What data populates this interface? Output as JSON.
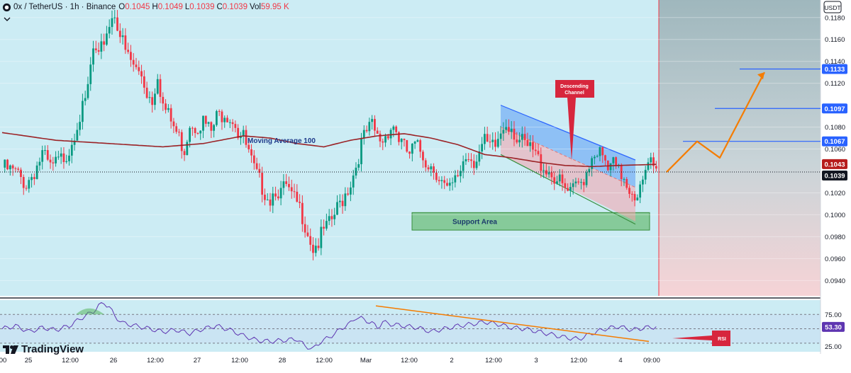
{
  "header": {
    "symbol": "0x / TetherUS · 1h · Binance",
    "ohlc": [
      {
        "label": "O",
        "value": "0.1045"
      },
      {
        "label": "H",
        "value": "0.1049"
      },
      {
        "label": "L",
        "value": "0.1039"
      },
      {
        "label": "C",
        "value": "0.1039"
      }
    ],
    "vol_label": "Vol",
    "vol_value": "59.95 K"
  },
  "currency": "USDT",
  "brand": "TradingView",
  "colors": {
    "up": "#089981",
    "down": "#f23645",
    "ma": "#9b2226",
    "price_bg": "#ccecf4",
    "forecast_bg": "#cfd9dd",
    "support": "#4caf50",
    "channel": "#5b9cf6",
    "arrow": "#f57c00"
  },
  "annotations": {
    "ma_label": "Moving Average 100",
    "support_label": "Support Area",
    "channel_callout": "Descending\nChannel",
    "rsi_callout": "RSI"
  },
  "chart_data": [
    {
      "type": "candlestick",
      "title": "0x / TetherUS · 1h · Binance",
      "y_axis": {
        "ticks": [
          "0.1180",
          "0.1160",
          "0.1140",
          "0.1120",
          "0.1080",
          "0.1060",
          "0.1020",
          "0.1000",
          "0.0980",
          "0.0960",
          "0.0940"
        ],
        "ylim": [
          0.0926,
          0.1196
        ]
      },
      "x_axis": {
        "ticks": [
          "00",
          "25",
          "12:00",
          "26",
          "12:00",
          "27",
          "12:00",
          "28",
          "12:00",
          "Mar",
          "12:00",
          "2",
          "12:00",
          "3",
          "12:00",
          "4",
          "09:00"
        ]
      },
      "price_labels": [
        {
          "value": "0.1133",
          "style": "line"
        },
        {
          "value": "0.1097",
          "style": "line"
        },
        {
          "value": "0.1067",
          "style": "line"
        },
        {
          "value": "0.1043",
          "style": "red"
        },
        {
          "value": "0.1039",
          "style": "dark"
        }
      ],
      "anchors": [
        [
          0,
          0.1043
        ],
        [
          5,
          0.1038
        ],
        [
          9,
          0.1028
        ],
        [
          12,
          0.104
        ],
        [
          15,
          0.1055
        ],
        [
          18,
          0.1042
        ],
        [
          22,
          0.105
        ],
        [
          25,
          0.106
        ],
        [
          28,
          0.1085
        ],
        [
          31,
          0.11
        ],
        [
          34,
          0.115
        ],
        [
          36,
          0.114
        ],
        [
          38,
          0.116
        ],
        [
          40,
          0.1175
        ],
        [
          42,
          0.1185
        ],
        [
          44,
          0.1165
        ],
        [
          46,
          0.1148
        ],
        [
          48,
          0.114
        ],
        [
          50,
          0.1132
        ],
        [
          52,
          0.1128
        ],
        [
          54,
          0.1112
        ],
        [
          56,
          0.1105
        ],
        [
          58,
          0.113
        ],
        [
          60,
          0.11
        ],
        [
          62,
          0.109
        ],
        [
          64,
          0.108
        ],
        [
          66,
          0.107
        ],
        [
          68,
          0.106
        ],
        [
          70,
          0.1085
        ],
        [
          72,
          0.1082
        ],
        [
          75,
          0.1085
        ],
        [
          78,
          0.1075
        ],
        [
          80,
          0.1088
        ],
        [
          83,
          0.1095
        ],
        [
          85,
          0.109
        ],
        [
          87,
          0.1085
        ],
        [
          88,
          0.1075
        ],
        [
          90,
          0.107
        ],
        [
          92,
          0.1055
        ],
        [
          94,
          0.104
        ],
        [
          96,
          0.103
        ],
        [
          98,
          0.1022
        ],
        [
          100,
          0.1015
        ],
        [
          102,
          0.1025
        ],
        [
          104,
          0.102
        ],
        [
          106,
          0.1025
        ],
        [
          108,
          0.1015
        ],
        [
          110,
          0.101
        ],
        [
          112,
          0.1
        ],
        [
          114,
          0.0985
        ],
        [
          116,
          0.097
        ],
        [
          118,
          0.0975
        ],
        [
          120,
          0.0985
        ],
        [
          122,
          0.099
        ],
        [
          124,
          0.1
        ],
        [
          126,
          0.101
        ],
        [
          128,
          0.102
        ],
        [
          130,
          0.103
        ],
        [
          132,
          0.1045
        ],
        [
          134,
          0.1065
        ],
        [
          136,
          0.1075
        ],
        [
          138,
          0.108
        ],
        [
          140,
          0.107
        ],
        [
          142,
          0.1068
        ],
        [
          144,
          0.1078
        ],
        [
          146,
          0.1082
        ],
        [
          148,
          0.107
        ],
        [
          150,
          0.106
        ],
        [
          152,
          0.1055
        ],
        [
          154,
          0.1062
        ],
        [
          156,
          0.1058
        ],
        [
          158,
          0.105
        ],
        [
          160,
          0.1045
        ],
        [
          162,
          0.104
        ],
        [
          164,
          0.103
        ],
        [
          166,
          0.102
        ],
        [
          168,
          0.1025
        ],
        [
          170,
          0.1035
        ],
        [
          172,
          0.105
        ],
        [
          174,
          0.1055
        ],
        [
          176,
          0.105
        ],
        [
          178,
          0.1058
        ],
        [
          180,
          0.1065
        ],
        [
          182,
          0.106
        ],
        [
          184,
          0.1062
        ],
        [
          186,
          0.1075
        ],
        [
          188,
          0.1085
        ],
        [
          190,
          0.1082
        ],
        [
          192,
          0.107
        ],
        [
          194,
          0.1065
        ],
        [
          196,
          0.106
        ],
        [
          198,
          0.1058
        ],
        [
          200,
          0.105
        ],
        [
          202,
          0.1045
        ],
        [
          204,
          0.104
        ],
        [
          206,
          0.1035
        ],
        [
          208,
          0.1028
        ],
        [
          210,
          0.1022
        ],
        [
          212,
          0.1018
        ],
        [
          214,
          0.1025
        ],
        [
          216,
          0.103
        ],
        [
          218,
          0.104
        ],
        [
          220,
          0.1055
        ],
        [
          222,
          0.106
        ],
        [
          224,
          0.105
        ],
        [
          226,
          0.104
        ],
        [
          228,
          0.1045
        ],
        [
          230,
          0.1038
        ],
        [
          232,
          0.1035
        ],
        [
          234,
          0.1025
        ],
        [
          236,
          0.102
        ],
        [
          238,
          0.1022
        ],
        [
          240,
          0.1035
        ],
        [
          242,
          0.1048
        ],
        [
          244,
          0.1039
        ]
      ],
      "ma_anchors": [
        [
          0,
          0.1075
        ],
        [
          20,
          0.1068
        ],
        [
          40,
          0.1065
        ],
        [
          60,
          0.1062
        ],
        [
          75,
          0.1065
        ],
        [
          90,
          0.1072
        ],
        [
          100,
          0.107
        ],
        [
          110,
          0.1065
        ],
        [
          120,
          0.1062
        ],
        [
          130,
          0.1068
        ],
        [
          140,
          0.1072
        ],
        [
          150,
          0.1074
        ],
        [
          160,
          0.107
        ],
        [
          170,
          0.1064
        ],
        [
          180,
          0.1055
        ],
        [
          190,
          0.1052
        ],
        [
          200,
          0.1048
        ],
        [
          210,
          0.1045
        ],
        [
          220,
          0.1044
        ],
        [
          230,
          0.1045
        ],
        [
          244,
          0.1046
        ]
      ],
      "forecast_path": [
        0.1039,
        0.1067,
        0.1052,
        0.113
      ],
      "support_zone": [
        0.0986,
        0.1002
      ],
      "channel": {
        "upper": [
          0.11,
          0.105
        ],
        "lower": [
          0.1055,
          0.0994
        ],
        "mid": [
          0.108,
          0.1025
        ]
      }
    },
    {
      "type": "line",
      "title": "RSI",
      "y_axis": {
        "ticks": [
          "75.00",
          "25.00"
        ],
        "ylim": [
          10,
          100
        ]
      },
      "current_value": "53.30",
      "anchors": [
        [
          0,
          50
        ],
        [
          5,
          55
        ],
        [
          10,
          45
        ],
        [
          15,
          52
        ],
        [
          20,
          48
        ],
        [
          25,
          55
        ],
        [
          30,
          70
        ],
        [
          34,
          80
        ],
        [
          36,
          90
        ],
        [
          38,
          95
        ],
        [
          40,
          88
        ],
        [
          42,
          72
        ],
        [
          45,
          60
        ],
        [
          50,
          55
        ],
        [
          55,
          50
        ],
        [
          60,
          45
        ],
        [
          65,
          48
        ],
        [
          70,
          42
        ],
        [
          75,
          50
        ],
        [
          80,
          55
        ],
        [
          85,
          48
        ],
        [
          90,
          38
        ],
        [
          95,
          30
        ],
        [
          100,
          28
        ],
        [
          105,
          30
        ],
        [
          110,
          32
        ],
        [
          113,
          20
        ],
        [
          116,
          15
        ],
        [
          119,
          28
        ],
        [
          122,
          35
        ],
        [
          125,
          45
        ],
        [
          128,
          55
        ],
        [
          130,
          60
        ],
        [
          132,
          70
        ],
        [
          134,
          68
        ],
        [
          138,
          60
        ],
        [
          140,
          52
        ],
        [
          142,
          62
        ],
        [
          145,
          58
        ],
        [
          150,
          55
        ],
        [
          155,
          52
        ],
        [
          160,
          45
        ],
        [
          165,
          50
        ],
        [
          170,
          55
        ],
        [
          175,
          58
        ],
        [
          180,
          62
        ],
        [
          185,
          58
        ],
        [
          190,
          52
        ],
        [
          195,
          50
        ],
        [
          200,
          45
        ],
        [
          205,
          40
        ],
        [
          210,
          35
        ],
        [
          215,
          32
        ],
        [
          220,
          42
        ],
        [
          225,
          50
        ],
        [
          230,
          54
        ],
        [
          235,
          48
        ],
        [
          240,
          52
        ],
        [
          244,
          53.3
        ]
      ],
      "trendline": [
        90,
        28
      ]
    }
  ]
}
